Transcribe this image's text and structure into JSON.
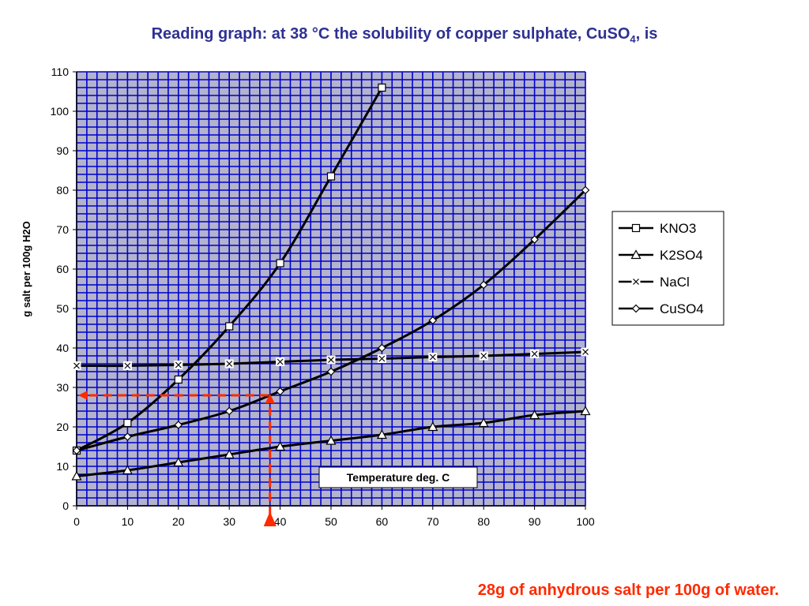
{
  "title": {
    "prefix": "Reading graph: at 38 °C the solubility of copper sulphate, CuSO",
    "subscript": "4",
    "suffix": ", is"
  },
  "answer": "28g of anhydrous salt per 100g of water.",
  "colors": {
    "plot_bg": "#b3b3cc",
    "grid": "#0000cc",
    "series": "#000000",
    "reading_arrow": "#ff2a00",
    "title": "#2e3192"
  },
  "chart_data": {
    "type": "line",
    "title": "",
    "xlabel": "Temperature deg. C",
    "ylabel": "g salt per 100g H2O",
    "xlim": [
      0,
      100
    ],
    "ylim": [
      0,
      110
    ],
    "xticks": [
      0,
      10,
      20,
      30,
      40,
      50,
      60,
      70,
      80,
      90,
      100
    ],
    "yticks": [
      0,
      10,
      20,
      30,
      40,
      50,
      60,
      70,
      80,
      90,
      100,
      110
    ],
    "grid": true,
    "legend_position": "right",
    "series": [
      {
        "name": "KNO3",
        "marker": "square",
        "x": [
          0,
          10,
          20,
          30,
          40,
          50,
          60
        ],
        "y": [
          14,
          21,
          32,
          45.5,
          61.5,
          83.5,
          106
        ]
      },
      {
        "name": "K2SO4",
        "marker": "triangle",
        "x": [
          0,
          10,
          20,
          30,
          40,
          50,
          60,
          70,
          80,
          90,
          100
        ],
        "y": [
          7.5,
          9,
          11,
          13,
          15,
          16.5,
          18,
          20,
          21,
          23,
          24
        ]
      },
      {
        "name": "NaCl",
        "marker": "x",
        "x": [
          0,
          10,
          20,
          30,
          40,
          50,
          60,
          70,
          80,
          90,
          100
        ],
        "y": [
          35.5,
          35.5,
          35.7,
          36,
          36.5,
          37,
          37.3,
          37.7,
          38,
          38.5,
          39
        ]
      },
      {
        "name": "CuSO4",
        "marker": "diamond",
        "x": [
          0,
          10,
          20,
          30,
          40,
          50,
          60,
          70,
          80,
          90,
          100
        ],
        "y": [
          14,
          17.5,
          20.5,
          24,
          29,
          34,
          40,
          47,
          56,
          67.5,
          80
        ]
      }
    ],
    "reading": {
      "x": 38,
      "y": 28
    }
  }
}
